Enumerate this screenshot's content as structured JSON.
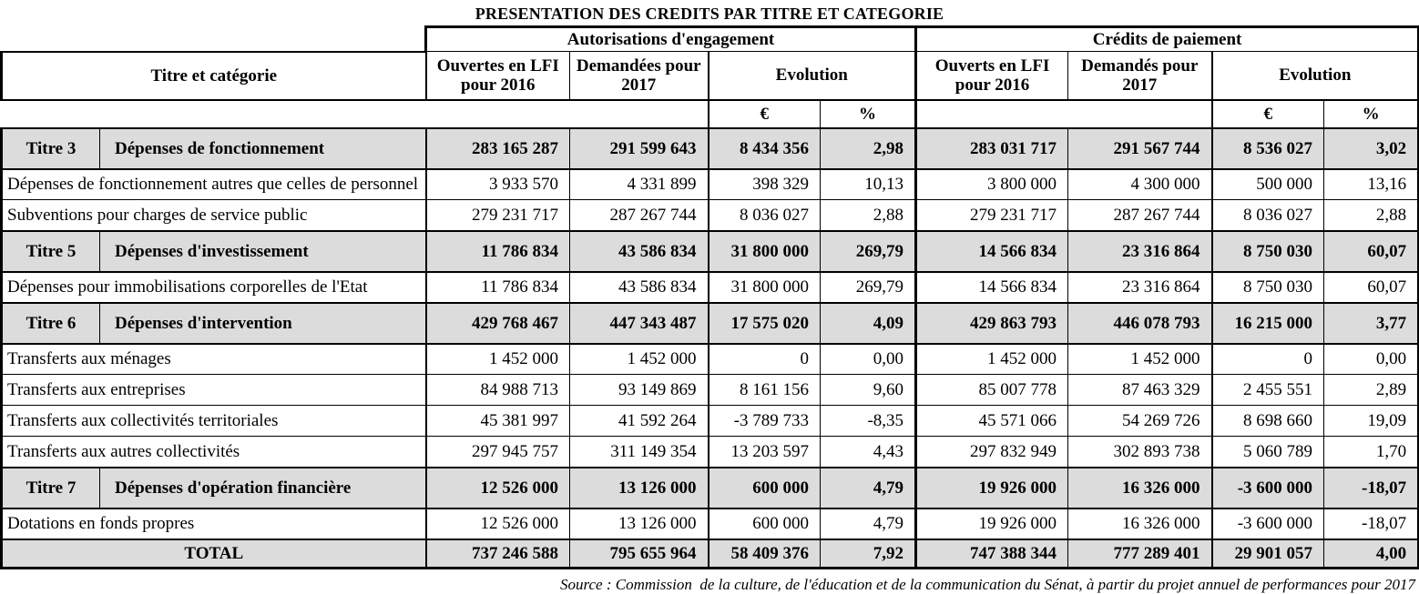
{
  "title": "PRESENTATION DES CREDITS PAR TITRE ET CATEGORIE",
  "table": {
    "group_headers": {
      "ae": "Autorisations d'engagement",
      "cp": "Crédits de paiement"
    },
    "col_headers": {
      "titre": "Titre et catégorie",
      "ae_2016": "Ouvertes en LFI pour 2016",
      "ae_2017": "Demandées pour 2017",
      "evolution": "Evolution",
      "cp_2016": "Ouverts en LFI pour 2016",
      "cp_2017": "Demandés pour 2017",
      "euro": "€",
      "pct": "%"
    },
    "rows": [
      {
        "type": "group",
        "titre": "Titre 3",
        "label": "Dépenses de fonctionnement",
        "values": [
          "283 165 287",
          "291 599 643",
          "8 434 356",
          "2,98",
          "283 031 717",
          "291 567 744",
          "8 536 027",
          "3,02"
        ]
      },
      {
        "type": "detail",
        "label": "Dépenses de fonctionnement autres que celles de personnel",
        "values": [
          "3 933 570",
          "4 331 899",
          "398 329",
          "10,13",
          "3 800 000",
          "4 300 000",
          "500 000",
          "13,16"
        ]
      },
      {
        "type": "detail",
        "label": "Subventions pour charges de service public",
        "values": [
          "279 231 717",
          "287 267 744",
          "8 036 027",
          "2,88",
          "279 231 717",
          "287 267 744",
          "8 036 027",
          "2,88"
        ]
      },
      {
        "type": "group",
        "titre": "Titre 5",
        "label": "Dépenses d'investissement",
        "values": [
          "11 786 834",
          "43 586 834",
          "31 800 000",
          "269,79",
          "14 566 834",
          "23 316 864",
          "8 750 030",
          "60,07"
        ]
      },
      {
        "type": "detail",
        "label": "Dépenses pour immobilisations corporelles de l'Etat",
        "values": [
          "11 786 834",
          "43 586 834",
          "31 800 000",
          "269,79",
          "14 566 834",
          "23 316 864",
          "8 750 030",
          "60,07"
        ]
      },
      {
        "type": "group",
        "titre": "Titre 6",
        "label": "Dépenses d'intervention",
        "values": [
          "429 768 467",
          "447 343 487",
          "17 575 020",
          "4,09",
          "429 863 793",
          "446 078 793",
          "16 215 000",
          "3,77"
        ]
      },
      {
        "type": "detail",
        "label": "Transferts aux ménages",
        "values": [
          "1 452 000",
          "1 452 000",
          "0",
          "0,00",
          "1 452 000",
          "1 452 000",
          "0",
          "0,00"
        ]
      },
      {
        "type": "detail",
        "label": "Transferts aux entreprises",
        "values": [
          "84 988 713",
          "93 149 869",
          "8 161 156",
          "9,60",
          "85 007 778",
          "87 463 329",
          "2 455 551",
          "2,89"
        ]
      },
      {
        "type": "detail",
        "label": "Transferts aux collectivités territoriales",
        "values": [
          "45 381 997",
          "41 592 264",
          "-3 789 733",
          "-8,35",
          "45 571 066",
          "54 269 726",
          "8 698 660",
          "19,09"
        ]
      },
      {
        "type": "detail",
        "label": "Transferts aux autres collectivités",
        "values": [
          "297 945 757",
          "311 149 354",
          "13 203 597",
          "4,43",
          "297 832 949",
          "302 893 738",
          "5 060 789",
          "1,70"
        ]
      },
      {
        "type": "group",
        "titre": "Titre 7",
        "label": "Dépenses d'opération financière",
        "values": [
          "12 526 000",
          "13 126 000",
          "600 000",
          "4,79",
          "19 926 000",
          "16 326 000",
          "-3 600 000",
          "-18,07"
        ]
      },
      {
        "type": "detail",
        "label": "Dotations en fonds propres",
        "values": [
          "12 526 000",
          "13 126 000",
          "600 000",
          "4,79",
          "19 926 000",
          "16 326 000",
          "-3 600 000",
          "-18,07"
        ]
      },
      {
        "type": "total",
        "label": "TOTAL",
        "values": [
          "737 246 588",
          "795 655 964",
          "58 409 376",
          "7,92",
          "747 388 344",
          "777 289 401",
          "29 901 057",
          "4,00"
        ]
      }
    ]
  },
  "source": "Source : Commission  de la culture, de l'éducation et de la communication du Sénat, à partir du projet annuel de performances pour 2017"
}
